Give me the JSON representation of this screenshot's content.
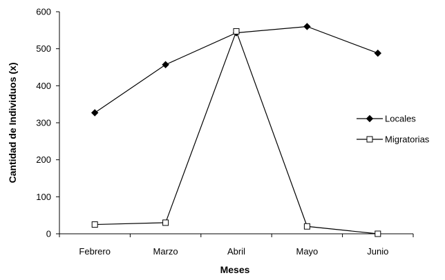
{
  "chart_data": {
    "type": "line",
    "categories": [
      "Febrero",
      "Marzo",
      "Abril",
      "Mayo",
      "Junio"
    ],
    "series": [
      {
        "name": "Locales",
        "marker": "filled-diamond",
        "values": [
          327,
          457,
          543,
          560,
          488
        ]
      },
      {
        "name": "Migratorias",
        "marker": "open-square",
        "values": [
          25,
          30,
          547,
          20,
          0
        ]
      }
    ],
    "xlabel": "Meses",
    "ylabel": "Cantidad de Individuos (x)",
    "ylim": [
      0,
      600
    ],
    "yticks": [
      0,
      100,
      200,
      300,
      400,
      500,
      600
    ],
    "grid": false,
    "legend_position": "right",
    "colors": {
      "line": "#000000",
      "background": "#ffffff"
    }
  }
}
